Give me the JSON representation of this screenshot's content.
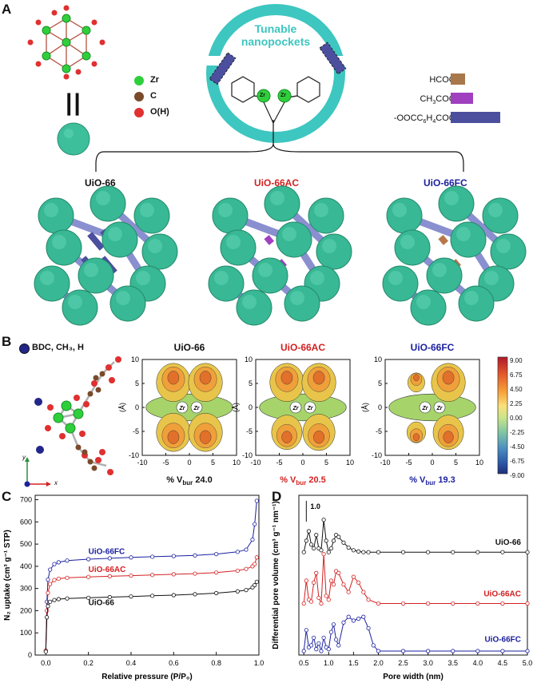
{
  "panels": {
    "a": "A",
    "b": "B",
    "c": "C",
    "d": "D"
  },
  "panelA": {
    "legend": [
      {
        "label": "Zr",
        "color": "#2fcf3c"
      },
      {
        "label": "C",
        "color": "#7a4a2a"
      },
      {
        "label": "O(H)",
        "color": "#e03030"
      }
    ],
    "equals": "||",
    "pocket_title_line1": "Tunable",
    "pocket_title_line2": "nanopockets",
    "zr": "Zr",
    "modulators": [
      {
        "label": "HCOO-",
        "color": "#a8784a",
        "length": 1
      },
      {
        "label": "CH3COO-",
        "color": "#a040c0",
        "length": 1.6
      },
      {
        "label": "-OOCC6H4COO-",
        "color": "#4b4f9e",
        "length": 3.5
      }
    ],
    "frameworks": [
      {
        "name": "UiO-66",
        "color": "#111111",
        "linker": "#4b4f9e"
      },
      {
        "name": "UiO-66AC",
        "color": "#d42020",
        "linker": "#a040c0"
      },
      {
        "name": "UiO-66FC",
        "color": "#1a1f9e",
        "linker": "#b8784a"
      }
    ]
  },
  "panelB": {
    "legend_label": "BDC, CH₃, H",
    "axis_y": "y",
    "axis_x": "x",
    "maps": [
      {
        "title": "UiO-66",
        "title_color": "#111111",
        "vbur_label": "% V",
        "vbur_sub": "bur",
        "vbur_value": "24.0"
      },
      {
        "title": "UiO-66AC",
        "title_color": "#d42020",
        "vbur_label": "% V",
        "vbur_sub": "bur",
        "vbur_value": "20.5"
      },
      {
        "title": "UiO-66FC",
        "title_color": "#1a1f9e",
        "vbur_label": "% V",
        "vbur_sub": "bur",
        "vbur_value": "19.3"
      }
    ],
    "map_ylabel": "(Å)",
    "map_ticks": [
      "10",
      "5",
      "0",
      "-5",
      "-10"
    ],
    "map_xticks": [
      "-10",
      "-5",
      "0",
      "5",
      "10"
    ],
    "colorbar_ticks": [
      "9.00",
      "6.75",
      "4.50",
      "2.25",
      "0.00",
      "-2.25",
      "-4.50",
      "-6.75",
      "-9.00"
    ],
    "colorbar_colors": [
      "#b2182b",
      "#e35a2a",
      "#f7a33b",
      "#fbe07a",
      "#c9e58a",
      "#7fc4a4",
      "#4b8fc2",
      "#2c5aa8",
      "#1f2d7a"
    ]
  },
  "chart_data": [
    {
      "type": "line",
      "panel": "C",
      "xlabel": "Relative pressure (P/P₀)",
      "ylabel": "N₂ uptake (cm³ g⁻¹ STP)",
      "xlim": [
        -0.05,
        1.0
      ],
      "ylim": [
        0,
        720
      ],
      "xticks": [
        "0.0",
        "0.2",
        "0.4",
        "0.6",
        "0.8",
        "1.0"
      ],
      "yticks": [
        "0",
        "100",
        "200",
        "300",
        "400",
        "500",
        "600",
        "700"
      ],
      "series": [
        {
          "name": "UiO-66FC",
          "color": "#1a1f9e",
          "x": [
            0.0,
            0.005,
            0.01,
            0.02,
            0.04,
            0.06,
            0.1,
            0.2,
            0.3,
            0.4,
            0.5,
            0.6,
            0.7,
            0.8,
            0.9,
            0.94,
            0.97,
            0.98,
            0.99
          ],
          "y": [
            20,
            240,
            340,
            385,
            410,
            418,
            426,
            432,
            436,
            440,
            443,
            446,
            449,
            455,
            465,
            475,
            520,
            590,
            695
          ]
        },
        {
          "name": "UiO-66AC",
          "color": "#d42020",
          "x": [
            0.0,
            0.005,
            0.01,
            0.02,
            0.04,
            0.06,
            0.1,
            0.2,
            0.3,
            0.4,
            0.5,
            0.6,
            0.7,
            0.8,
            0.9,
            0.94,
            0.97,
            0.98,
            0.99
          ],
          "y": [
            20,
            200,
            280,
            320,
            338,
            344,
            348,
            352,
            355,
            358,
            361,
            364,
            367,
            372,
            380,
            388,
            400,
            410,
            440
          ]
        },
        {
          "name": "UiO-66",
          "color": "#111111",
          "x": [
            0.0,
            0.005,
            0.01,
            0.02,
            0.04,
            0.06,
            0.1,
            0.2,
            0.3,
            0.4,
            0.5,
            0.6,
            0.7,
            0.8,
            0.9,
            0.94,
            0.97,
            0.98,
            0.99
          ],
          "y": [
            15,
            170,
            220,
            240,
            248,
            252,
            255,
            258,
            261,
            264,
            267,
            270,
            274,
            279,
            287,
            293,
            305,
            315,
            330
          ]
        }
      ]
    },
    {
      "type": "line",
      "panel": "D",
      "xlabel": "Pore width (nm)",
      "ylabel": "Differential pore volume (cm³ g⁻¹ nm⁻¹)",
      "xlim": [
        0.4,
        5.0
      ],
      "xticks": [
        "0.5",
        "1.0",
        "1.5",
        "2.0",
        "2.5",
        "3.0",
        "3.5",
        "4.0",
        "4.5",
        "5.0"
      ],
      "scale_bar": "1.0",
      "series": [
        {
          "name": "UiO-66",
          "color": "#111111",
          "offset": 2.6,
          "x": [
            0.5,
            0.55,
            0.6,
            0.65,
            0.7,
            0.75,
            0.8,
            0.85,
            0.9,
            0.95,
            1.0,
            1.05,
            1.1,
            1.15,
            1.2,
            1.3,
            1.4,
            1.5,
            1.6,
            1.7,
            1.8,
            2.0,
            2.5,
            3.0,
            3.5,
            4.0,
            4.5,
            5.0
          ],
          "y": [
            0.0,
            0.3,
            0.55,
            0.2,
            0.1,
            0.45,
            0.1,
            0.05,
            0.85,
            0.3,
            0.0,
            0.1,
            0.3,
            0.45,
            0.4,
            0.25,
            0.12,
            0.05,
            0.02,
            0.0,
            0.0,
            0.0,
            0.0,
            0.0,
            0.0,
            0.0,
            0.0,
            0.0
          ]
        },
        {
          "name": "UiO-66AC",
          "color": "#d42020",
          "offset": 1.25,
          "x": [
            0.5,
            0.55,
            0.6,
            0.65,
            0.7,
            0.75,
            0.8,
            0.85,
            0.9,
            0.95,
            1.0,
            1.05,
            1.1,
            1.15,
            1.2,
            1.3,
            1.4,
            1.5,
            1.6,
            1.7,
            1.8,
            2.0,
            2.5,
            3.0,
            3.5,
            4.0,
            4.5,
            5.0
          ],
          "y": [
            0.0,
            0.6,
            0.1,
            0.05,
            0.55,
            0.8,
            0.15,
            0.0,
            1.3,
            0.2,
            0.1,
            0.6,
            0.5,
            0.85,
            0.8,
            0.5,
            0.3,
            0.7,
            0.55,
            0.3,
            0.1,
            0.0,
            0.0,
            0.0,
            0.0,
            0.0,
            0.0,
            0.0
          ]
        },
        {
          "name": "UiO-66FC",
          "color": "#1a1f9e",
          "offset": 0.0,
          "x": [
            0.5,
            0.55,
            0.6,
            0.65,
            0.7,
            0.75,
            0.8,
            0.85,
            0.9,
            0.95,
            1.0,
            1.05,
            1.1,
            1.15,
            1.2,
            1.3,
            1.4,
            1.5,
            1.6,
            1.7,
            1.8,
            1.9,
            2.0,
            2.5,
            3.0,
            3.5,
            4.0,
            4.5,
            5.0
          ],
          "y": [
            0.0,
            0.55,
            0.1,
            0.15,
            0.35,
            0.05,
            0.2,
            0.0,
            0.35,
            0.1,
            0.05,
            0.5,
            0.7,
            0.3,
            0.15,
            0.75,
            0.9,
            0.8,
            0.85,
            0.9,
            0.6,
            0.15,
            0.0,
            0.0,
            0.0,
            0.0,
            0.0,
            0.0,
            0.0
          ]
        }
      ]
    }
  ]
}
